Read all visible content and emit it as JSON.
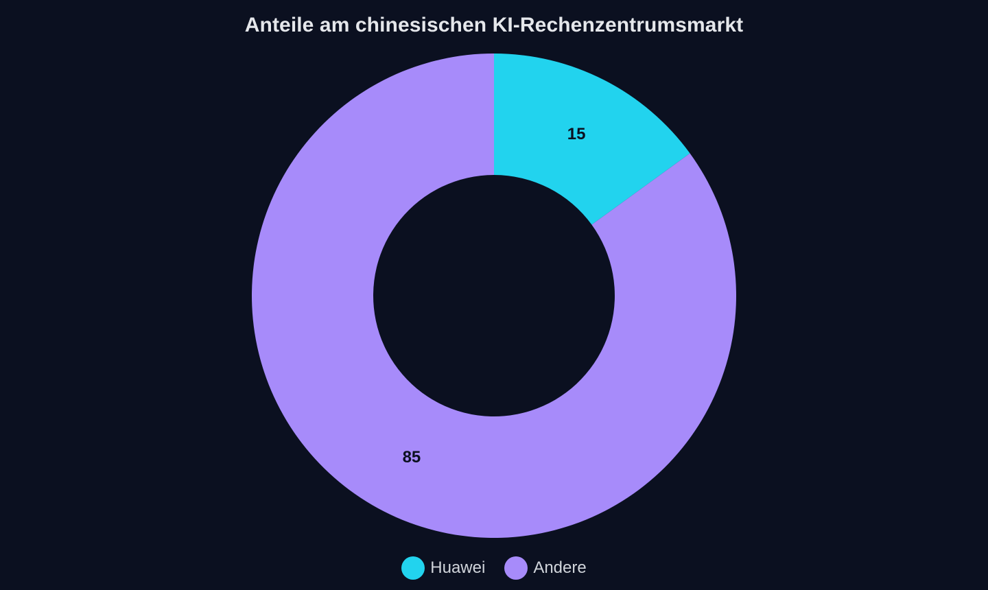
{
  "chart_data": {
    "type": "pie",
    "variant": "donut",
    "title": "Anteile am chinesischen KI-Rechenzentrumsmarkt",
    "categories": [
      "Huawei",
      "Andere"
    ],
    "values": [
      15,
      85
    ],
    "colors": [
      "#22d3ee",
      "#a78bfa"
    ],
    "data_labels": [
      "15",
      "85"
    ],
    "legend_position": "bottom",
    "background": "#0b1020"
  },
  "legend": {
    "items": [
      {
        "label": "Huawei",
        "color": "#22d3ee"
      },
      {
        "label": "Andere",
        "color": "#a78bfa"
      }
    ]
  }
}
